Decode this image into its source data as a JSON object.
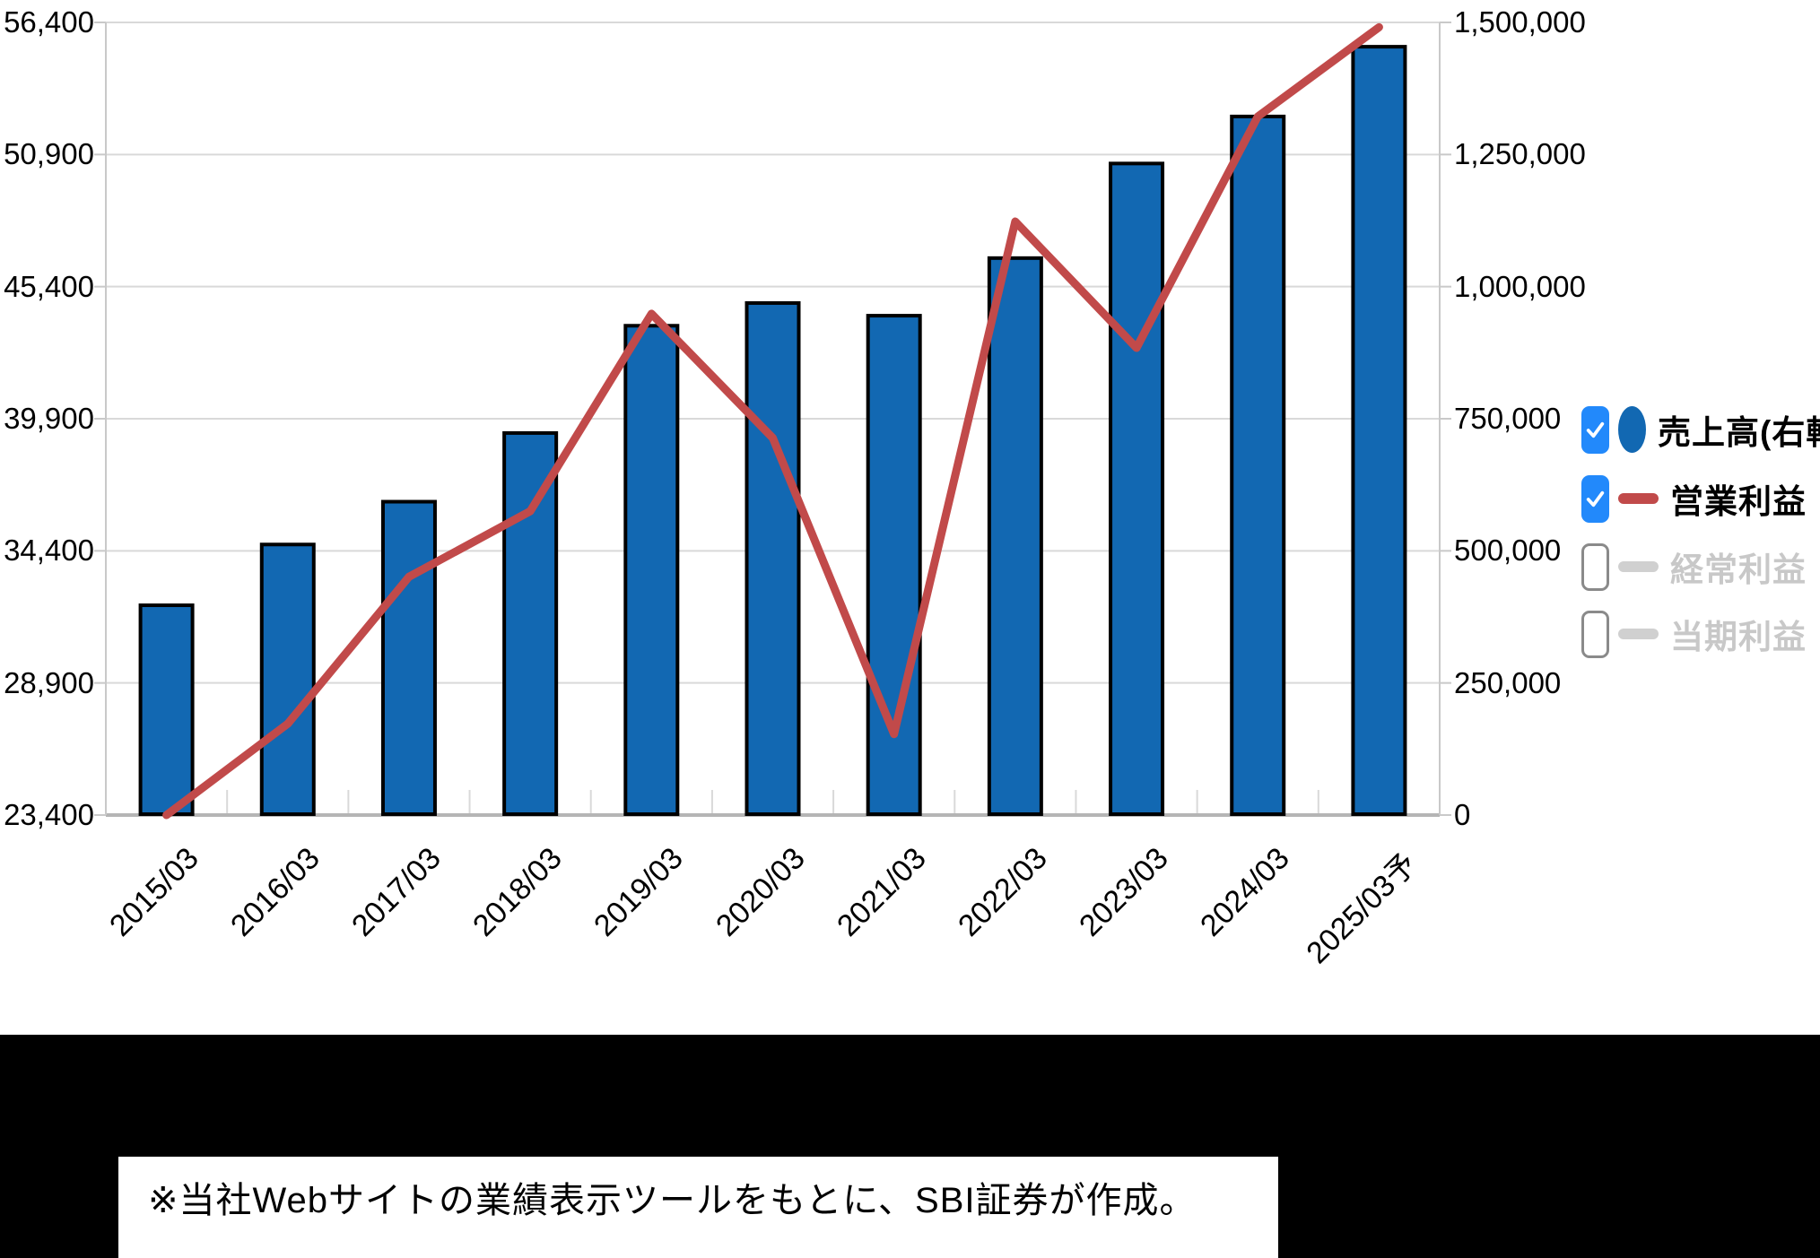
{
  "chart_data": {
    "type": "bar+line combo",
    "categories": [
      "2015/03",
      "2016/03",
      "2017/03",
      "2018/03",
      "2019/03",
      "2020/03",
      "2021/03",
      "2022/03",
      "2023/03",
      "2024/03",
      "2025/03予"
    ],
    "series": [
      {
        "name": "売上高(右軸)",
        "type": "bar",
        "axis": "right",
        "color": "#1268b2",
        "values": [
          397000,
          512000,
          593000,
          723000,
          926000,
          969000,
          945000,
          1054000,
          1233000,
          1322000,
          1454000
        ]
      },
      {
        "name": "営業利益",
        "type": "line",
        "axis": "left",
        "color": "#c14a4a",
        "values": [
          23400,
          27200,
          33320,
          36050,
          44270,
          39100,
          26770,
          48110,
          42850,
          52480,
          56200
        ]
      }
    ],
    "left_axis": {
      "min": 23400,
      "max": 56400,
      "tick_values": [
        56400,
        50900,
        45400,
        39900,
        34400,
        28900,
        23400
      ],
      "tick_labels": [
        "56,400",
        "50,900",
        "45,400",
        "39,900",
        "34,400",
        "28,900",
        "23,400"
      ]
    },
    "right_axis": {
      "min": 0,
      "max": 1500000,
      "tick_values": [
        1500000,
        1250000,
        1000000,
        750000,
        500000,
        250000,
        0
      ],
      "tick_labels": [
        "1,500,000",
        "1,250,000",
        "1,000,000",
        "750,000",
        "500,000",
        "250,000",
        "0"
      ]
    },
    "grid": true,
    "legend_position": "right"
  },
  "legend": {
    "items": [
      {
        "label": "売上高(右軸)",
        "checked": true,
        "marker": "circle",
        "marker_color": "#1268b2",
        "text_color": "#000000"
      },
      {
        "label": "営業利益",
        "checked": true,
        "marker": "dash",
        "marker_color": "#c14a4a",
        "text_color": "#000000"
      },
      {
        "label": "経常利益",
        "checked": false,
        "marker": "dash",
        "marker_color": "#d0d0d0",
        "text_color": "#c8c8c8"
      },
      {
        "label": "当期利益",
        "checked": false,
        "marker": "dash",
        "marker_color": "#d0d0d0",
        "text_color": "#c8c8c8"
      }
    ]
  },
  "footer": {
    "note": "※当社Webサイトの業績表示ツールをもとに、SBI証券が作成。"
  },
  "colors": {
    "checkbox_checked": "#2289fb",
    "checkbox_border": "#8a8a8a",
    "grid": "#d9d9d9",
    "axis": "#c9c9c9",
    "baseline": "#b5b5b5"
  }
}
